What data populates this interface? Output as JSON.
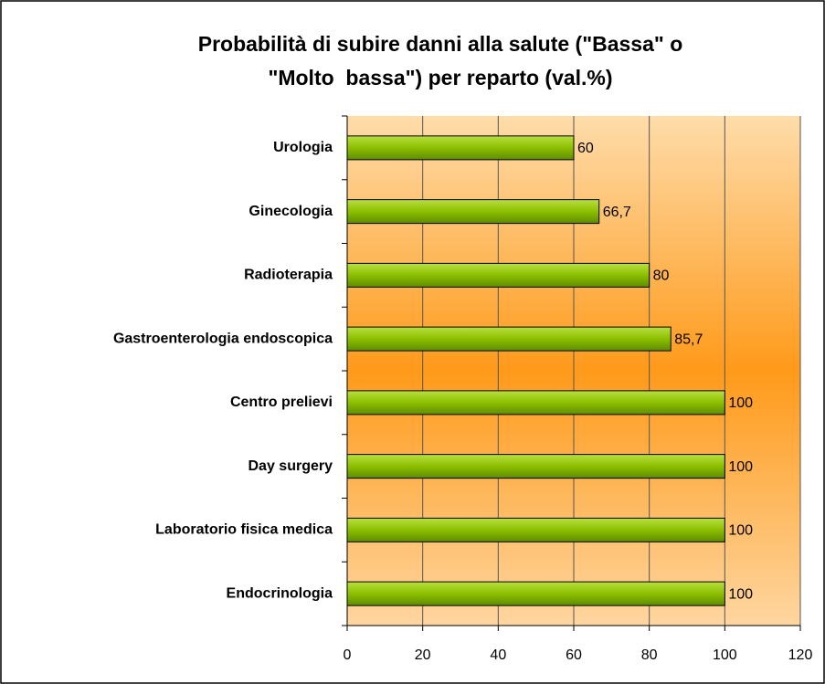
{
  "chart_data": {
    "type": "barh",
    "title": [
      "Probabilità di subire danni alla salute (\"Bassa\" o",
      "\"Molto  bassa\") per reparto (val.%)"
    ],
    "categories": [
      "Urologia",
      "Ginecologia",
      "Radioterapia",
      "Gastroenterologia endoscopica",
      "Centro prelievi",
      "Day surgery",
      "Laboratorio fisica medica",
      "Endocrinologia"
    ],
    "values": [
      60,
      66.7,
      80,
      85.7,
      100,
      100,
      100,
      100
    ],
    "value_labels": [
      "60",
      "66,7",
      "80",
      "85,7",
      "100",
      "100",
      "100",
      "100"
    ],
    "color": "#8cbf00",
    "xlim": [
      0,
      120
    ],
    "xticks": [
      0,
      20,
      40,
      60,
      80,
      100,
      120
    ],
    "grid": true
  }
}
